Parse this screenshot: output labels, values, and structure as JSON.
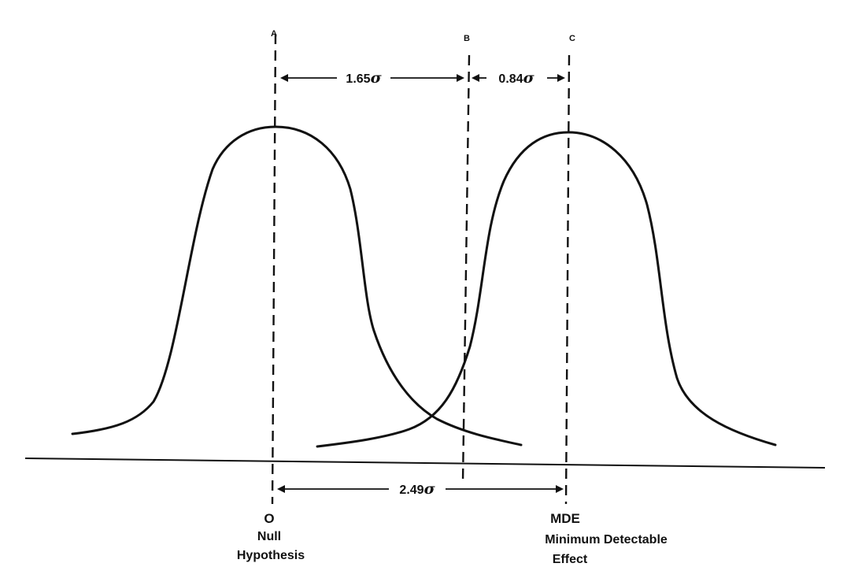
{
  "markers": {
    "a": "A",
    "b": "B",
    "c": "C"
  },
  "distances": {
    "a_to_b": "1.65",
    "b_to_c": "0.84",
    "a_to_c": "2.49",
    "sigma": "σ"
  },
  "origin_label": "O",
  "null_label_line1": "Null",
  "null_label_line2": "Hypothesis",
  "mde_label": "MDE",
  "mde_label_line1": "Minimum Detectable",
  "mde_label_line2": "Effect",
  "colors": {
    "ink": "#111111",
    "background": "#ffffff"
  }
}
